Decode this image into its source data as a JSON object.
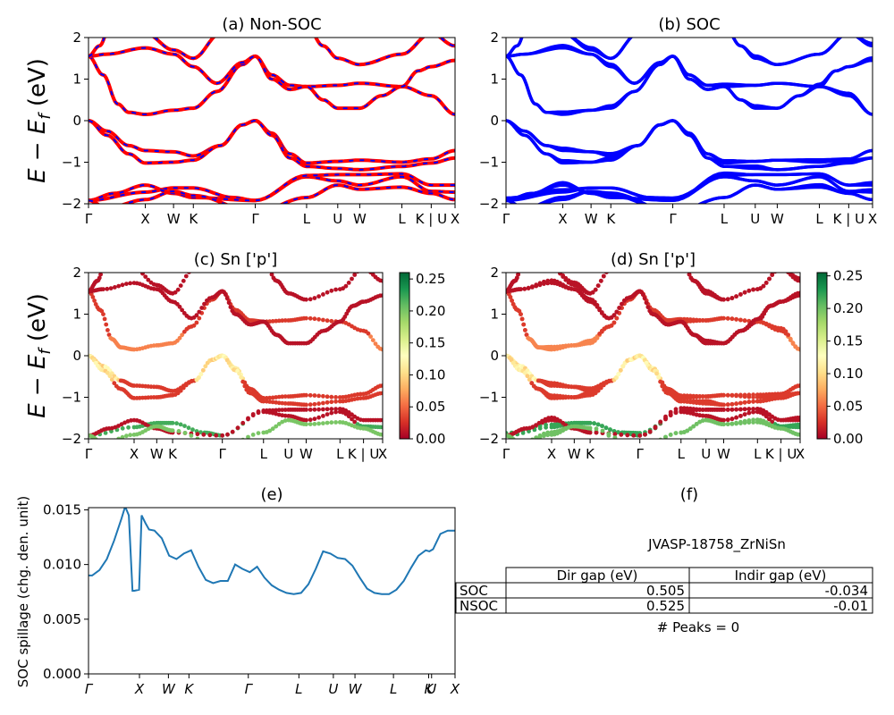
{
  "figure": {
    "ylabel_energy_main": "E − E",
    "ylabel_energy_sub": "f",
    "ylabel_energy_unit": " (eV)",
    "ylabel_spillage": "SOC spillage (chg. den. unit)"
  },
  "chart_data": [
    {
      "id": "a",
      "type": "line",
      "title": "(a) Non-SOC",
      "ylim": [
        -2,
        2
      ],
      "yticks": [
        "2",
        "1",
        "0",
        "−1",
        "−2"
      ],
      "xticks": [
        "Γ",
        "X",
        "W",
        "K",
        "Γ",
        "L",
        "U",
        "W",
        "L",
        "K | U",
        "X"
      ],
      "xtick_pos": [
        0,
        0.155,
        0.232,
        0.286,
        0.455,
        0.595,
        0.68,
        0.74,
        0.855,
        0.935,
        1.0
      ],
      "bands_up_color": "#ff0000",
      "bands_dn_color": "#0000ff"
    },
    {
      "id": "b",
      "type": "line",
      "title": "(b) SOC",
      "ylim": [
        -2,
        2
      ],
      "yticks": [
        "2",
        "1",
        "0",
        "−1",
        "−2"
      ],
      "xticks": [
        "Γ",
        "X",
        "W",
        "K",
        "Γ",
        "L",
        "U",
        "W",
        "L",
        "K | U",
        "X"
      ],
      "xtick_pos": [
        0,
        0.155,
        0.232,
        0.286,
        0.455,
        0.595,
        0.68,
        0.74,
        0.855,
        0.935,
        1.0
      ],
      "color": "#0000ff"
    },
    {
      "id": "c",
      "type": "scatter",
      "title": "(c)  Sn ['p']",
      "ylim": [
        -2,
        2
      ],
      "yticks": [
        "2",
        "1",
        "0",
        "−1",
        "−2"
      ],
      "xticks": [
        "Γ",
        "X",
        "W",
        "K",
        "Γ",
        "L",
        "U",
        "W",
        "L",
        "K | U",
        "X"
      ],
      "xtick_pos": [
        0,
        0.155,
        0.232,
        0.286,
        0.455,
        0.595,
        0.68,
        0.74,
        0.855,
        0.935,
        1.0
      ],
      "colorbar_ticks": [
        "0.25",
        "0.20",
        "0.15",
        "0.10",
        "0.05",
        "0.00"
      ],
      "colorbar_range": [
        0,
        0.26
      ]
    },
    {
      "id": "d",
      "type": "scatter",
      "title": "(d) Sn ['p']",
      "ylim": [
        -2,
        2
      ],
      "yticks": [
        "2",
        "1",
        "0",
        "−1",
        "−2"
      ],
      "xticks": [
        "Γ",
        "X",
        "W",
        "K",
        "Γ",
        "L",
        "U",
        "W",
        "L",
        "K | U",
        "X"
      ],
      "xtick_pos": [
        0,
        0.155,
        0.232,
        0.286,
        0.455,
        0.595,
        0.68,
        0.74,
        0.855,
        0.935,
        1.0
      ],
      "colorbar_ticks": [
        "0.25",
        "0.20",
        "0.15",
        "0.10",
        "0.05",
        "0.00"
      ],
      "colorbar_range": [
        0,
        0.255
      ]
    },
    {
      "id": "e",
      "type": "line",
      "title": "(e)",
      "ylim": [
        0,
        0.0152
      ],
      "yticks": [
        "0.015",
        "0.010",
        "0.005",
        "0.000"
      ],
      "ytick_vals": [
        0.015,
        0.01,
        0.005,
        0.0
      ],
      "xticks": [
        "Γ",
        "X",
        "W",
        "K",
        "Γ",
        "L",
        "U",
        "W",
        "L",
        "K",
        "U",
        "X"
      ],
      "xtick_pos": [
        0,
        0.139,
        0.218,
        0.274,
        0.436,
        0.574,
        0.668,
        0.727,
        0.832,
        0.928,
        0.936,
        1.0
      ],
      "color": "#1f77b4",
      "x": [
        0,
        0.01,
        0.03,
        0.05,
        0.07,
        0.09,
        0.1,
        0.11,
        0.12,
        0.125,
        0.138,
        0.145,
        0.155,
        0.165,
        0.18,
        0.2,
        0.22,
        0.24,
        0.26,
        0.28,
        0.3,
        0.32,
        0.34,
        0.36,
        0.38,
        0.4,
        0.42,
        0.44,
        0.46,
        0.48,
        0.5,
        0.52,
        0.54,
        0.56,
        0.58,
        0.6,
        0.62,
        0.64,
        0.66,
        0.68,
        0.7,
        0.72,
        0.74,
        0.76,
        0.78,
        0.8,
        0.82,
        0.84,
        0.86,
        0.88,
        0.9,
        0.92,
        0.93,
        0.94,
        0.96,
        0.98,
        1.0
      ],
      "y": [
        0.009,
        0.009,
        0.0095,
        0.0105,
        0.0122,
        0.0142,
        0.0153,
        0.0145,
        0.0076,
        0.0076,
        0.0077,
        0.0145,
        0.0138,
        0.0132,
        0.0131,
        0.0124,
        0.0108,
        0.0105,
        0.011,
        0.0113,
        0.0098,
        0.0086,
        0.0083,
        0.0085,
        0.0085,
        0.01,
        0.0096,
        0.0093,
        0.0098,
        0.0088,
        0.0081,
        0.0077,
        0.0074,
        0.0073,
        0.0074,
        0.0082,
        0.0096,
        0.0112,
        0.011,
        0.0106,
        0.0105,
        0.0099,
        0.0088,
        0.0078,
        0.0074,
        0.0073,
        0.0073,
        0.0077,
        0.0085,
        0.0097,
        0.0108,
        0.0113,
        0.0112,
        0.0114,
        0.0128,
        0.0131,
        0.0131
      ]
    },
    {
      "id": "f",
      "type": "table",
      "title": "(f)",
      "material": "JVASP-18758_ZrNiSn",
      "columns": [
        "Dir gap (eV)",
        "Indir gap (eV)"
      ],
      "rows": [
        {
          "label": "SOC",
          "values": [
            "0.505",
            "-0.034"
          ]
        },
        {
          "label": "NSOC",
          "values": [
            "0.525",
            "-0.01"
          ]
        }
      ],
      "footer": "# Peaks = 0"
    }
  ]
}
